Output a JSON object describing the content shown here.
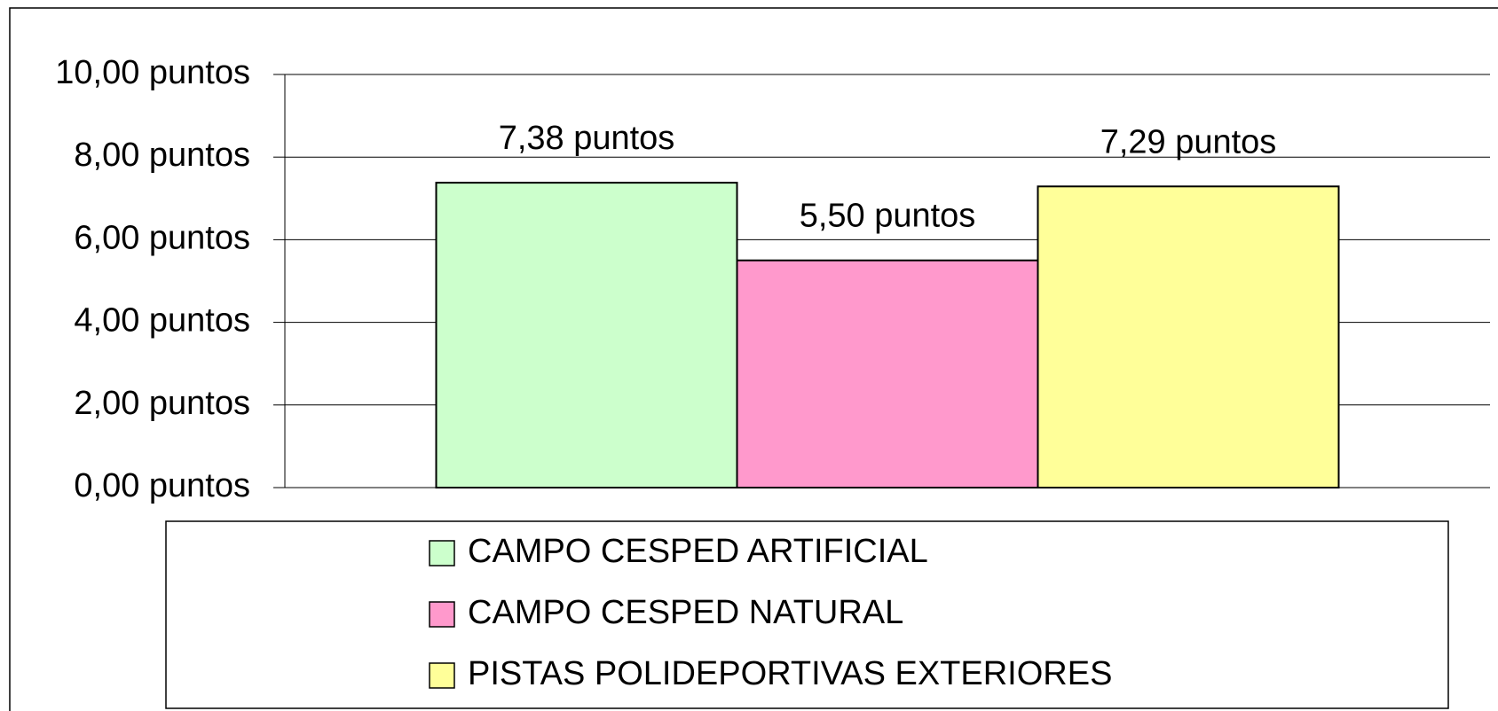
{
  "chart_data": {
    "type": "bar",
    "categories": [
      null
    ],
    "series": [
      {
        "name": "CAMPO CESPED ARTIFICIAL",
        "color": "#ccffcc",
        "values": [
          7.38
        ],
        "value_labels": [
          "7,38 puntos"
        ]
      },
      {
        "name": "CAMPO CESPED NATURAL",
        "color": "#ff99cc",
        "values": [
          5.5
        ],
        "value_labels": [
          "5,50 puntos"
        ]
      },
      {
        "name": "PISTAS POLIDEPORTIVAS EXTERIORES",
        "color": "#ffff99",
        "values": [
          7.29
        ],
        "value_labels": [
          "7,29 puntos"
        ]
      }
    ],
    "ylim": [
      0,
      10
    ],
    "yticks": [
      {
        "value": 0,
        "label": "0,00 puntos"
      },
      {
        "value": 2,
        "label": "2,00 puntos"
      },
      {
        "value": 4,
        "label": "4,00 puntos"
      },
      {
        "value": 6,
        "label": "6,00 puntos"
      },
      {
        "value": 8,
        "label": "8,00 puntos"
      },
      {
        "value": 10,
        "label": "10,00 puntos"
      }
    ],
    "grid": true,
    "legend": "bottom"
  }
}
